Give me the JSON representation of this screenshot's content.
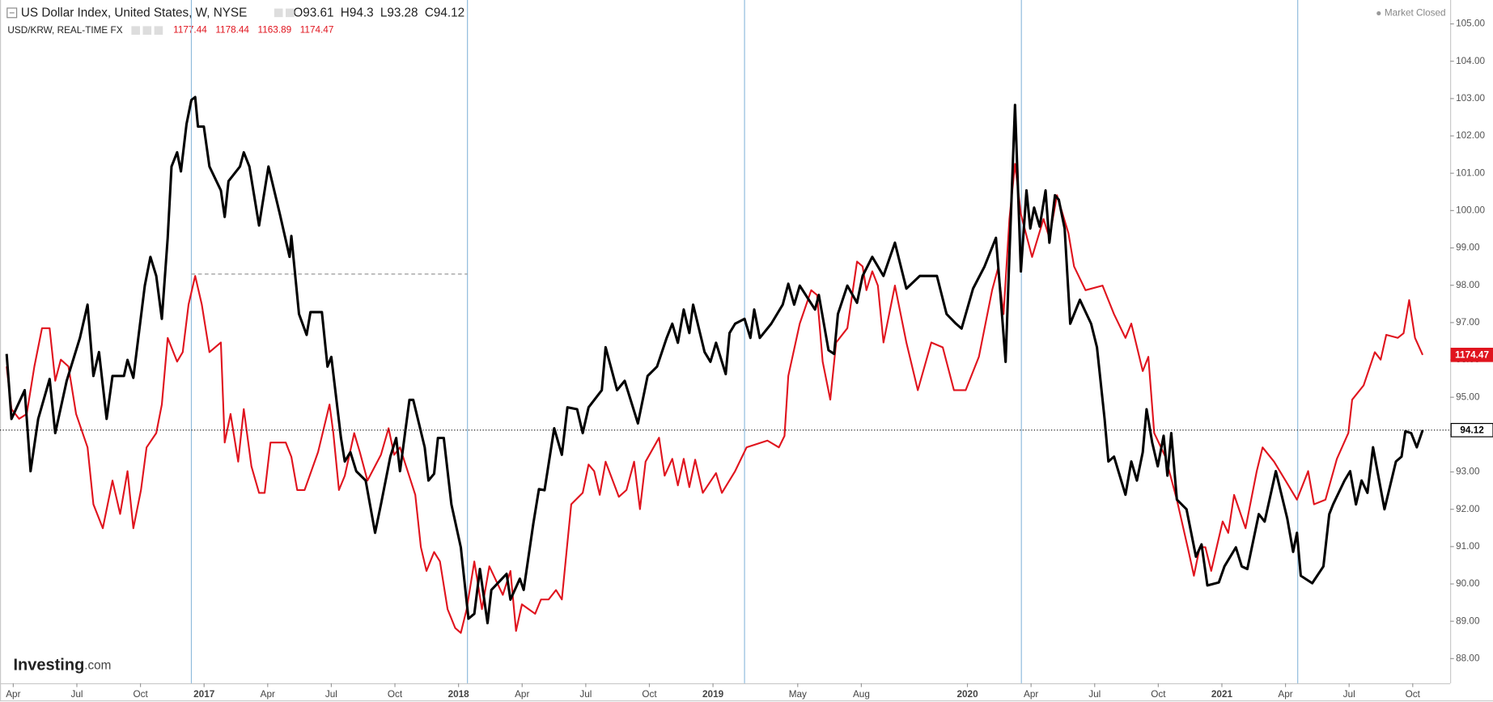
{
  "chart_data": {
    "type": "line",
    "market_status": "Market Closed",
    "watermark": {
      "brand": "Investing",
      "suffix": ".com"
    },
    "xlim": [
      2016.198,
      2021.897
    ],
    "xticks": [
      {
        "value": 2016.25,
        "label": "Apr"
      },
      {
        "value": 2016.5,
        "label": "Jul"
      },
      {
        "value": 2016.75,
        "label": "Oct"
      },
      2017,
      {
        "value": 2017.25,
        "label": "Apr"
      },
      {
        "value": 2017.5,
        "label": "Jul"
      },
      {
        "value": 2017.75,
        "label": "Oct"
      },
      2018,
      {
        "value": 2018.25,
        "label": "Apr"
      },
      {
        "value": 2018.5,
        "label": "Jul"
      },
      {
        "value": 2018.75,
        "label": "Oct"
      },
      2019,
      {
        "value": 2019.333,
        "label": "May"
      },
      {
        "value": 2019.583,
        "label": "Aug"
      },
      2020,
      {
        "value": 2020.25,
        "label": "Apr"
      },
      {
        "value": 2020.5,
        "label": "Jul"
      },
      {
        "value": 2020.75,
        "label": "Oct"
      },
      2021,
      {
        "value": 2021.25,
        "label": "Apr"
      },
      {
        "value": 2021.5,
        "label": "Jul"
      },
      {
        "value": 2021.75,
        "label": "Oct"
      }
    ],
    "ylim": [
      87.34,
      105.64
    ],
    "yticks": [
      {
        "value": 88,
        "label": "88.00"
      },
      {
        "value": 89,
        "label": "89.00"
      },
      {
        "value": 90,
        "label": "90.00"
      },
      {
        "value": 91,
        "label": "91.00"
      },
      {
        "value": 92,
        "label": "92.00"
      },
      {
        "value": 93,
        "label": "93.00"
      },
      {
        "value": 94,
        "label": "94.00"
      },
      {
        "value": 95,
        "label": "95.00"
      },
      {
        "value": 96,
        "label": "96.00"
      },
      {
        "value": 97,
        "label": "97.00"
      },
      {
        "value": 98,
        "label": "98.00"
      },
      {
        "value": 99,
        "label": "99.00"
      },
      {
        "value": 100,
        "label": "100.00"
      },
      {
        "value": 101,
        "label": "101.00"
      },
      {
        "value": 102,
        "label": "102.00"
      },
      {
        "value": 103,
        "label": "103.00"
      },
      {
        "value": 104,
        "label": "104.00"
      },
      {
        "value": 105,
        "label": "105.00"
      }
    ],
    "y2lim": [
      1025.1,
      1335.9
    ],
    "vlines": [
      2016.95,
      2018.035,
      2019.124,
      2020.212,
      2021.298
    ],
    "hline": {
      "y": 98.3,
      "x": [
        2016.95,
        2018.035
      ]
    },
    "series": [
      {
        "name": "US Dollar Index, United States, W, NYSE",
        "color": "#000000",
        "ohlc": [
          {
            "label": "O",
            "value": 93.61
          },
          {
            "label": "H",
            "value": 94.3
          },
          {
            "label": "L",
            "value": 93.28
          },
          {
            "label": "C",
            "value": 94.12
          }
        ],
        "x": [
          2016.224,
          2016.243,
          2016.295,
          2016.318,
          2016.348,
          2016.393,
          2016.415,
          2016.46,
          2016.512,
          2016.542,
          2016.565,
          2016.587,
          2016.617,
          2016.64,
          2016.685,
          2016.699,
          2016.722,
          2016.767,
          2016.789,
          2016.812,
          2016.834,
          2016.857,
          2016.872,
          2016.894,
          2016.909,
          2016.931,
          2016.95,
          2016.965,
          2016.976,
          2016.999,
          2017.021,
          2017.066,
          2017.081,
          2017.096,
          2017.141,
          2017.156,
          2017.178,
          2017.216,
          2017.253,
          2017.298,
          2017.336,
          2017.343,
          2017.373,
          2017.403,
          2017.418,
          2017.463,
          2017.485,
          2017.5,
          2017.538,
          2017.553,
          2017.575,
          2017.598,
          2017.635,
          2017.672,
          2017.695,
          2017.732,
          2017.755,
          2017.77,
          2017.807,
          2017.822,
          2017.867,
          2017.882,
          2017.904,
          2017.919,
          2017.942,
          2017.972,
          2018.009,
          2018.039,
          2018.062,
          2018.084,
          2018.114,
          2018.129,
          2018.189,
          2018.204,
          2018.241,
          2018.256,
          2018.294,
          2018.316,
          2018.338,
          2018.376,
          2018.406,
          2018.428,
          2018.466,
          2018.488,
          2018.511,
          2018.563,
          2018.578,
          2018.623,
          2018.653,
          2018.705,
          2018.743,
          2018.78,
          2018.818,
          2018.84,
          2018.862,
          2018.885,
          2018.907,
          2018.922,
          2018.967,
          2018.99,
          2019.012,
          2019.05,
          2019.065,
          2019.087,
          2019.124,
          2019.147,
          2019.162,
          2019.184,
          2019.229,
          2019.274,
          2019.296,
          2019.319,
          2019.341,
          2019.401,
          2019.416,
          2019.454,
          2019.476,
          2019.491,
          2019.528,
          2019.566,
          2019.588,
          2019.626,
          2019.67,
          2019.715,
          2019.76,
          2019.813,
          2019.88,
          2019.918,
          2019.955,
          2019.977,
          2020.022,
          2020.067,
          2020.112,
          2020.127,
          2020.15,
          2020.165,
          2020.187,
          2020.21,
          2020.232,
          2020.247,
          2020.262,
          2020.284,
          2020.307,
          2020.322,
          2020.344,
          2020.359,
          2020.382,
          2020.404,
          2020.442,
          2020.486,
          2020.509,
          2020.539,
          2020.554,
          2020.576,
          2020.621,
          2020.644,
          2020.666,
          2020.689,
          2020.704,
          2020.726,
          2020.748,
          2020.771,
          2020.786,
          2020.801,
          2020.823,
          2020.861,
          2020.898,
          2020.92,
          2020.943,
          2020.988,
          2021.01,
          2021.055,
          2021.078,
          2021.1,
          2021.145,
          2021.168,
          2021.212,
          2021.257,
          2021.28,
          2021.295,
          2021.31,
          2021.355,
          2021.399,
          2021.422,
          2021.437,
          2021.482,
          2021.504,
          2021.527,
          2021.549,
          2021.572,
          2021.594,
          2021.639,
          2021.684,
          2021.706,
          2021.721,
          2021.744,
          2021.766,
          2021.789
        ],
        "values": [
          96.16,
          94.42,
          95.19,
          93.02,
          94.42,
          95.49,
          94.04,
          95.44,
          96.59,
          97.48,
          95.57,
          96.21,
          94.42,
          95.57,
          95.57,
          96.0,
          95.52,
          97.99,
          98.76,
          98.25,
          97.1,
          99.27,
          101.18,
          101.56,
          101.05,
          102.32,
          102.96,
          103.04,
          102.25,
          102.25,
          101.18,
          100.54,
          99.83,
          100.79,
          101.18,
          101.56,
          101.18,
          99.6,
          101.18,
          99.9,
          98.76,
          99.32,
          97.23,
          96.67,
          97.28,
          97.28,
          95.82,
          96.08,
          93.91,
          93.28,
          93.53,
          93.02,
          92.77,
          91.37,
          92.13,
          93.41,
          93.91,
          93.02,
          94.93,
          94.93,
          93.66,
          92.77,
          92.95,
          93.91,
          93.91,
          92.13,
          90.98,
          89.07,
          89.2,
          90.4,
          88.95,
          89.84,
          90.27,
          89.58,
          90.14,
          89.84,
          91.62,
          92.54,
          92.51,
          94.17,
          93.46,
          94.73,
          94.68,
          94.04,
          94.73,
          95.19,
          96.34,
          95.19,
          95.44,
          94.3,
          95.57,
          95.82,
          96.59,
          96.97,
          96.46,
          97.35,
          96.72,
          97.48,
          96.21,
          95.95,
          96.46,
          95.62,
          96.72,
          96.97,
          97.1,
          96.59,
          97.35,
          96.59,
          96.97,
          97.48,
          98.04,
          97.48,
          97.99,
          97.35,
          97.74,
          96.26,
          96.16,
          97.23,
          97.99,
          97.53,
          98.25,
          98.76,
          98.25,
          99.14,
          97.91,
          98.25,
          98.25,
          97.23,
          96.97,
          96.84,
          97.91,
          98.5,
          99.27,
          97.99,
          95.95,
          98.81,
          102.83,
          98.37,
          100.54,
          99.52,
          100.08,
          99.57,
          100.54,
          99.14,
          100.41,
          100.29,
          99.52,
          96.97,
          97.61,
          96.97,
          96.34,
          94.42,
          93.28,
          93.41,
          92.39,
          93.28,
          92.77,
          93.53,
          94.68,
          93.79,
          93.15,
          93.97,
          92.9,
          94.04,
          92.26,
          92.0,
          90.73,
          91.06,
          89.96,
          90.04,
          90.47,
          90.98,
          90.47,
          90.4,
          91.87,
          91.67,
          93.02,
          91.75,
          90.86,
          91.37,
          90.22,
          90.02,
          90.47,
          91.87,
          92.13,
          92.77,
          93.02,
          92.13,
          92.77,
          92.44,
          93.66,
          92.0,
          93.28,
          93.41,
          94.09,
          94.04,
          93.66,
          94.12
        ]
      },
      {
        "name": "USD/KRW, REAL-TIME FX",
        "color": "#e0141e",
        "axis": "y2",
        "ohlc": [
          {
            "value": 1177.44
          },
          {
            "value": 1178.44
          },
          {
            "value": 1163.89
          },
          {
            "value": 1174.47
          }
        ],
        "x": [
          2016.224,
          2016.243,
          2016.273,
          2016.303,
          2016.333,
          2016.363,
          2016.393,
          2016.415,
          2016.437,
          2016.467,
          2016.497,
          2016.542,
          2016.565,
          2016.602,
          2016.64,
          2016.67,
          2016.699,
          2016.722,
          2016.752,
          2016.774,
          2016.812,
          2016.834,
          2016.857,
          2016.894,
          2016.916,
          2016.939,
          2016.965,
          2016.991,
          2017.021,
          2017.066,
          2017.081,
          2017.104,
          2017.134,
          2017.156,
          2017.186,
          2017.216,
          2017.238,
          2017.261,
          2017.321,
          2017.343,
          2017.366,
          2017.395,
          2017.448,
          2017.493,
          2017.508,
          2017.53,
          2017.553,
          2017.59,
          2017.612,
          2017.642,
          2017.695,
          2017.725,
          2017.747,
          2017.77,
          2017.83,
          2017.852,
          2017.874,
          2017.904,
          2017.927,
          2017.957,
          2017.987,
          2018.009,
          2018.032,
          2018.062,
          2018.092,
          2018.121,
          2018.174,
          2018.204,
          2018.226,
          2018.249,
          2018.301,
          2018.324,
          2018.354,
          2018.383,
          2018.406,
          2018.428,
          2018.443,
          2018.488,
          2018.511,
          2018.533,
          2018.555,
          2018.578,
          2018.63,
          2018.66,
          2018.69,
          2018.713,
          2018.735,
          2018.788,
          2018.81,
          2018.84,
          2018.862,
          2018.885,
          2018.907,
          2018.93,
          2018.96,
          2019.012,
          2019.035,
          2019.087,
          2019.132,
          2019.214,
          2019.259,
          2019.281,
          2019.296,
          2019.341,
          2019.386,
          2019.409,
          2019.431,
          2019.461,
          2019.484,
          2019.528,
          2019.566,
          2019.588,
          2019.603,
          2019.626,
          2019.648,
          2019.67,
          2019.715,
          2019.76,
          2019.805,
          2019.858,
          2019.903,
          2019.947,
          2019.993,
          2020.045,
          2020.097,
          2020.12,
          2020.142,
          2020.165,
          2020.187,
          2020.21,
          2020.254,
          2020.299,
          2020.322,
          2020.352,
          2020.397,
          2020.419,
          2020.464,
          2020.531,
          2020.576,
          2020.621,
          2020.644,
          2020.689,
          2020.711,
          2020.734,
          2020.778,
          2020.823,
          2020.868,
          2020.89,
          2020.913,
          2020.935,
          2020.958,
          2021.003,
          2021.025,
          2021.048,
          2021.093,
          2021.137,
          2021.16,
          2021.205,
          2021.25,
          2021.295,
          2021.339,
          2021.362,
          2021.407,
          2021.452,
          2021.497,
          2021.512,
          2021.557,
          2021.601,
          2021.624,
          2021.646,
          2021.691,
          2021.714,
          2021.736,
          2021.759,
          2021.789
        ],
        "values": [
          1169.2,
          1149.8,
          1145.4,
          1147.6,
          1169.2,
          1186.6,
          1186.6,
          1162.7,
          1172.3,
          1169.2,
          1147.6,
          1132.4,
          1106.5,
          1095.6,
          1117.3,
          1102.1,
          1121.6,
          1095.6,
          1113.0,
          1132.4,
          1138.9,
          1151.9,
          1182.2,
          1171.4,
          1175.7,
          1197.4,
          1210.4,
          1197.4,
          1175.7,
          1180.1,
          1134.6,
          1147.6,
          1125.9,
          1149.8,
          1123.8,
          1111.7,
          1111.7,
          1134.6,
          1134.6,
          1128.1,
          1113.0,
          1113.0,
          1130.3,
          1151.9,
          1138.9,
          1113.0,
          1119.5,
          1138.9,
          1130.3,
          1117.3,
          1129.0,
          1141.1,
          1129.0,
          1132.4,
          1110.8,
          1087.0,
          1076.2,
          1084.8,
          1080.5,
          1058.8,
          1050.2,
          1048.0,
          1058.8,
          1080.5,
          1058.8,
          1078.3,
          1065.3,
          1076.2,
          1048.9,
          1061.0,
          1056.7,
          1063.2,
          1063.2,
          1067.5,
          1063.2,
          1089.1,
          1106.5,
          1111.7,
          1124.6,
          1121.6,
          1110.8,
          1125.9,
          1109.9,
          1113.0,
          1125.9,
          1104.3,
          1125.9,
          1136.8,
          1119.5,
          1127.2,
          1115.1,
          1127.2,
          1114.3,
          1126.8,
          1111.7,
          1120.7,
          1111.7,
          1121.6,
          1132.4,
          1135.5,
          1132.4,
          1137.6,
          1164.9,
          1188.7,
          1203.9,
          1201.7,
          1171.4,
          1154.1,
          1180.1,
          1186.6,
          1216.9,
          1214.7,
          1203.9,
          1212.5,
          1206.0,
          1180.1,
          1206.0,
          1180.1,
          1158.4,
          1180.1,
          1177.9,
          1158.4,
          1158.4,
          1173.6,
          1203.9,
          1213.8,
          1193.0,
          1236.3,
          1261.4,
          1238.5,
          1219.0,
          1236.3,
          1227.7,
          1247.1,
          1229.8,
          1214.7,
          1203.9,
          1206.0,
          1193.0,
          1182.2,
          1188.7,
          1167.1,
          1173.6,
          1138.9,
          1128.1,
          1108.6,
          1085.7,
          1074.0,
          1087.0,
          1087.0,
          1076.2,
          1098.7,
          1093.5,
          1110.8,
          1095.6,
          1121.6,
          1132.4,
          1125.9,
          1117.3,
          1108.6,
          1121.6,
          1106.5,
          1108.6,
          1127.2,
          1138.9,
          1154.1,
          1160.6,
          1175.7,
          1172.3,
          1183.6,
          1182.2,
          1184.3,
          1199.4,
          1182.2,
          1174.47
        ]
      }
    ]
  }
}
